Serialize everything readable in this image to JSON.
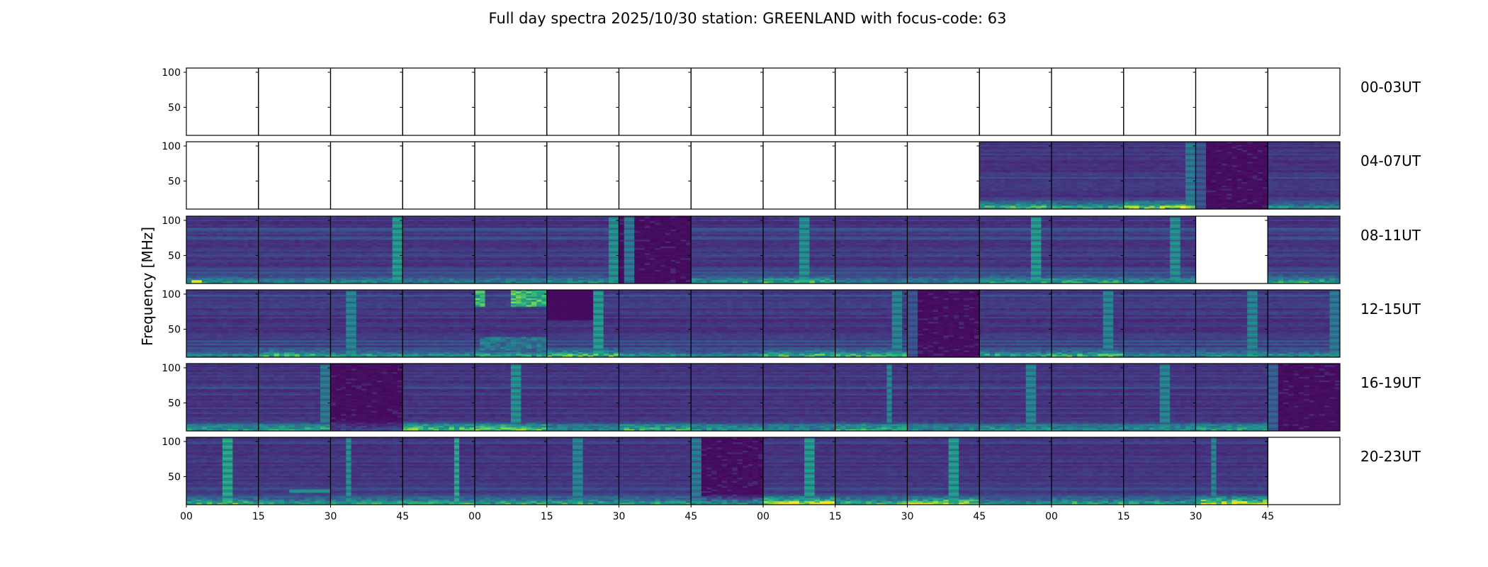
{
  "chart_data": {
    "type": "heatmap",
    "title": "Full day spectra 2025/10/30 station: GREENLAND with focus-code: 63",
    "ylabel": "Frequency [MHz]",
    "xlabel": "",
    "colormap": "viridis",
    "ylim": [
      10,
      106
    ],
    "yticks": [
      50,
      100
    ],
    "ytick_labels": [
      "50",
      "100"
    ],
    "xtick_labels": [
      "00",
      "15",
      "30",
      "45",
      "00",
      "15",
      "30",
      "45",
      "00",
      "15",
      "30",
      "45",
      "00",
      "15",
      "30",
      "45"
    ],
    "panel_minutes": 15,
    "panels_per_row": 16,
    "rows": [
      {
        "label": "00-03UT",
        "panels": [
          {
            "state": "empty"
          },
          {
            "state": "empty"
          },
          {
            "state": "empty"
          },
          {
            "state": "empty"
          },
          {
            "state": "empty"
          },
          {
            "state": "empty"
          },
          {
            "state": "empty"
          },
          {
            "state": "empty"
          },
          {
            "state": "empty"
          },
          {
            "state": "empty"
          },
          {
            "state": "empty"
          },
          {
            "state": "empty"
          },
          {
            "state": "empty"
          },
          {
            "state": "empty"
          },
          {
            "state": "empty"
          },
          {
            "state": "empty"
          }
        ]
      },
      {
        "label": "04-07UT",
        "panels": [
          {
            "state": "empty"
          },
          {
            "state": "empty"
          },
          {
            "state": "empty"
          },
          {
            "state": "empty"
          },
          {
            "state": "empty"
          },
          {
            "state": "empty"
          },
          {
            "state": "empty"
          },
          {
            "state": "empty"
          },
          {
            "state": "empty"
          },
          {
            "state": "empty"
          },
          {
            "state": "empty"
          },
          {
            "state": "spectrum",
            "low_band": 0.55
          },
          {
            "state": "spectrum",
            "low_band": 0.45
          },
          {
            "state": "spectrum",
            "burst_at": 0.95,
            "burst_level": 0.45,
            "low_band": 0.7
          },
          {
            "state": "quiet",
            "burst_at": 0.05,
            "burst_level": 0.3
          },
          {
            "state": "spectrum",
            "low_band": 0.35
          }
        ]
      },
      {
        "label": "08-11UT",
        "panels": [
          {
            "state": "spectrum",
            "low_band": 0.4,
            "hotspot": 0.95
          },
          {
            "state": "spectrum",
            "low_band": 0.3
          },
          {
            "state": "spectrum",
            "burst_at": 0.9,
            "burst_level": 0.6,
            "low_band": 0.35
          },
          {
            "state": "spectrum",
            "low_band": 0.3
          },
          {
            "state": "spectrum",
            "low_band": 0.3
          },
          {
            "state": "spectrum",
            "burst_at": 0.9,
            "burst_level": 0.55,
            "low_band": 0.4
          },
          {
            "state": "quiet",
            "burst_at": 0.12,
            "burst_level": 0.45
          },
          {
            "state": "spectrum",
            "low_band": 0.45
          },
          {
            "state": "spectrum",
            "burst_at": 0.6,
            "burst_level": 0.55,
            "low_band": 0.55
          },
          {
            "state": "spectrum",
            "low_band": 0.3
          },
          {
            "state": "spectrum",
            "low_band": 0.3
          },
          {
            "state": "spectrum",
            "burst_at": 0.82,
            "burst_level": 0.6,
            "low_band": 0.5
          },
          {
            "state": "spectrum",
            "low_band": 0.5
          },
          {
            "state": "spectrum",
            "burst_at": 0.72,
            "burst_level": 0.55,
            "low_band": 0.4
          },
          {
            "state": "empty"
          },
          {
            "state": "spectrum",
            "low_band": 0.5
          }
        ]
      },
      {
        "label": "12-15UT",
        "panels": [
          {
            "state": "spectrum",
            "low_band": 0.3
          },
          {
            "state": "spectrum",
            "low_band": 0.55
          },
          {
            "state": "spectrum",
            "burst_at": 0.28,
            "burst_level": 0.5,
            "low_band": 0.4
          },
          {
            "state": "spectrum",
            "low_band": 0.35
          },
          {
            "state": "storm",
            "low_band": 0.45
          },
          {
            "state": "spectrum",
            "burst_at": 0.72,
            "burst_level": 0.6,
            "low_band": 0.6,
            "dark_top": true
          },
          {
            "state": "spectrum",
            "low_band": 0.35
          },
          {
            "state": "spectrum",
            "low_band": 0.3
          },
          {
            "state": "spectrum",
            "low_band": 0.55
          },
          {
            "state": "spectrum",
            "burst_at": 0.85,
            "burst_level": 0.5,
            "low_band": 0.55
          },
          {
            "state": "quiet",
            "burst_at": 0.05,
            "burst_level": 0.3
          },
          {
            "state": "spectrum",
            "low_band": 0.45
          },
          {
            "state": "spectrum",
            "burst_at": 0.8,
            "burst_level": 0.5,
            "low_band": 0.55
          },
          {
            "state": "spectrum",
            "low_band": 0.3
          },
          {
            "state": "spectrum",
            "burst_at": 0.8,
            "burst_level": 0.5,
            "low_band": 0.4
          },
          {
            "state": "spectrum",
            "burst_at": 0.95,
            "burst_level": 0.45,
            "low_band": 0.35
          }
        ]
      },
      {
        "label": "16-19UT",
        "panels": [
          {
            "state": "spectrum",
            "low_band": 0.45
          },
          {
            "state": "spectrum",
            "burst_at": 0.95,
            "burst_level": 0.45,
            "low_band": 0.5
          },
          {
            "state": "quiet",
            "low_band": 0.2
          },
          {
            "state": "spectrum",
            "low_band": 0.65
          },
          {
            "state": "spectrum",
            "burst_at": 0.6,
            "burst_level": 0.55,
            "low_band": 0.65
          },
          {
            "state": "spectrum",
            "low_band": 0.35
          },
          {
            "state": "spectrum",
            "low_band": 0.55
          },
          {
            "state": "spectrum",
            "low_band": 0.4
          },
          {
            "state": "spectrum",
            "low_band": 0.35
          },
          {
            "state": "spectrum",
            "burst_at": 0.75,
            "burst_level": 0.5,
            "low_band": 0.5
          },
          {
            "state": "spectrum",
            "low_band": 0.35
          },
          {
            "state": "spectrum",
            "burst_at": 0.72,
            "burst_level": 0.5,
            "low_band": 0.4
          },
          {
            "state": "spectrum",
            "low_band": 0.35
          },
          {
            "state": "spectrum",
            "burst_at": 0.55,
            "burst_level": 0.5,
            "low_band": 0.4
          },
          {
            "state": "spectrum",
            "low_band": 0.45
          },
          {
            "state": "quiet",
            "burst_at": 0.05,
            "burst_level": 0.35
          }
        ]
      },
      {
        "label": "20-23UT",
        "panels": [
          {
            "state": "spectrum",
            "burst_at": 0.55,
            "burst_level": 0.65,
            "low_band": 0.55
          },
          {
            "state": "spectrum",
            "low_band": 0.45,
            "line_at": 0.2
          },
          {
            "state": "spectrum",
            "burst_at": 0.25,
            "burst_level": 0.55,
            "low_band": 0.5
          },
          {
            "state": "spectrum",
            "burst_at": 0.75,
            "burst_level": 0.65,
            "low_band": 0.5
          },
          {
            "state": "spectrum",
            "low_band": 0.5
          },
          {
            "state": "spectrum",
            "burst_at": 0.4,
            "burst_level": 0.5,
            "low_band": 0.5
          },
          {
            "state": "spectrum",
            "low_band": 0.45
          },
          {
            "state": "quiet",
            "burst_at": 0.1,
            "burst_level": 0.45,
            "low_band": 0.5
          },
          {
            "state": "spectrum",
            "burst_at": 0.65,
            "burst_level": 0.6,
            "low_band": 0.9
          },
          {
            "state": "spectrum",
            "low_band": 0.55
          },
          {
            "state": "spectrum",
            "burst_at": 0.65,
            "burst_level": 0.6,
            "low_band": 0.8
          },
          {
            "state": "spectrum",
            "low_band": 0.35
          },
          {
            "state": "spectrum",
            "low_band": 0.5
          },
          {
            "state": "spectrum",
            "low_band": 0.45
          },
          {
            "state": "spectrum",
            "burst_at": 0.25,
            "burst_level": 0.5,
            "low_band": 0.9
          },
          {
            "state": "empty"
          }
        ]
      }
    ]
  }
}
